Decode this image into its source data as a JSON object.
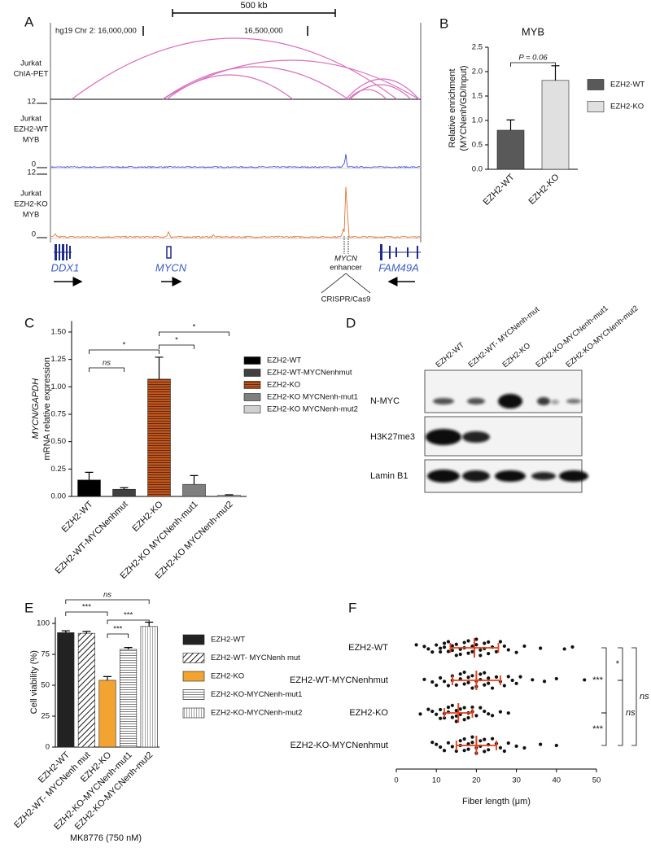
{
  "panel_a": {
    "label": "A",
    "scale_bar": "500 kb",
    "coord_start": "hg19 Chr 2: 16,000,000",
    "coord_mid": "16,500,000",
    "tracks": [
      {
        "name": [
          "Jurkat",
          "ChIA-PET"
        ]
      },
      {
        "name": [
          "Jurkat",
          "EZH2-WT",
          "MYB"
        ],
        "max": 12,
        "min": 0
      },
      {
        "name": [
          "Jurkat",
          "EZH2-KO",
          "MYB"
        ],
        "max": 12,
        "min": 0
      }
    ],
    "genes": [
      "DDX1",
      "MYCN",
      "FAM49A"
    ],
    "enhancer": [
      "MYCN",
      "enhancer"
    ],
    "crispr": "CRISPR/Cas9"
  },
  "panel_d": {
    "label": "D",
    "lanes": [
      "EZH2-WT",
      "EZH2-WT- MYCNenh-mut",
      "EZH2-KO",
      "EZH2-KO-MYCNenh-mut1",
      "EZH2-KO-MYCNenh-mut2"
    ],
    "rows": [
      "N-MYC",
      "H3K27me3",
      "Lamin B1"
    ]
  },
  "chart_data": [
    {
      "type": "bar",
      "panel": "B",
      "title": "MYB",
      "ylabel": [
        "Relative enrichment",
        "(MYCNenh/GD/Input)"
      ],
      "categories": [
        "EZH2-WT",
        "EZH2-KO"
      ],
      "values": [
        0.8,
        1.82
      ],
      "errors": [
        0.21,
        0.3
      ],
      "colors": [
        "#595959",
        "#e0e0e0"
      ],
      "hatch": [
        "none",
        "none"
      ],
      "ylim": [
        0,
        2.5
      ],
      "yticks": [
        {
          "value": 0,
          "label": "0.0"
        },
        {
          "value": 0.5,
          "label": "0.5"
        },
        {
          "value": 1,
          "label": "1.0"
        },
        {
          "value": 1.5,
          "label": "1.5"
        },
        {
          "value": 2,
          "label": "2.0"
        },
        {
          "value": 2.5,
          "label": "2.5"
        }
      ],
      "comparisons": [
        {
          "pair": [
            "EZH2-WT",
            "EZH2-KO"
          ],
          "label": "P = 0.06"
        }
      ]
    },
    {
      "type": "bar",
      "panel": "C",
      "ylabel": [
        "MYCN/GAPDH",
        "mRNA relative expression"
      ],
      "categories": [
        "EZH2-WT",
        "EZH2-WT-MYCNenhmut",
        "EZH2-KO",
        "EZH2-KO MYCNenh-mut1",
        "EZH2-KO MYCNenh-mut2"
      ],
      "values": [
        0.15,
        0.065,
        1.07,
        0.11,
        0.01
      ],
      "errors": [
        0.07,
        0.015,
        0.2,
        0.08,
        0.005
      ],
      "colors": [
        "#000000",
        "#404040",
        "#c0561e",
        "#7f7f7f",
        "#d0d0d0"
      ],
      "hatch": [
        "none",
        "none",
        "horizontal",
        "none",
        "none"
      ],
      "ylim": [
        0,
        1.6
      ],
      "yticks": [
        {
          "value": 0,
          "label": "0.00"
        },
        {
          "value": 0.25,
          "label": "0.25"
        },
        {
          "value": 0.5,
          "label": "0.50"
        },
        {
          "value": 0.75,
          "label": "0.75"
        },
        {
          "value": 1,
          "label": "1.00"
        },
        {
          "value": 1.25,
          "label": "1.25"
        },
        {
          "value": 1.5,
          "label": "1.50"
        }
      ],
      "comparisons": [
        {
          "pair": [
            "EZH2-WT",
            "EZH2-WT-MYCNenhmut"
          ],
          "label": "ns"
        },
        {
          "pair": [
            "EZH2-WT",
            "EZH2-KO"
          ],
          "label": "*"
        },
        {
          "pair": [
            "EZH2-KO",
            "EZH2-KO MYCNenh-mut1"
          ],
          "label": "*"
        },
        {
          "pair": [
            "EZH2-KO",
            "EZH2-KO MYCNenh-mut2"
          ],
          "label": "*"
        }
      ]
    },
    {
      "type": "bar",
      "panel": "E",
      "ylabel": "Cell viability (%)",
      "xlabel": "MK8776 (750 nM)",
      "categories": [
        "EZH2-WT",
        "EZH2-WT- MYCNenh mut",
        "EZH2-KO",
        "EZH2-KO-MYCNenh-mut1",
        "EZH2-KO-MYCNenh-mut2"
      ],
      "values": [
        92.5,
        92,
        54,
        79,
        97.5
      ],
      "errors": [
        1.5,
        1.5,
        3,
        1.5,
        3.5
      ],
      "colors": [
        "#222222",
        "#ffffff",
        "#f2a330",
        "#ffffff",
        "#ffffff"
      ],
      "hatch": [
        "none",
        "diagonal",
        "none",
        "horizontal",
        "vertical"
      ],
      "ylim": [
        0,
        105
      ],
      "yticks": [
        0,
        25,
        50,
        75,
        100
      ],
      "comparisons": [
        {
          "pair": [
            "EZH2-WT",
            "EZH2-KO-MYCNenh-mut2"
          ],
          "label": "ns"
        },
        {
          "pair": [
            "EZH2-WT",
            "EZH2-KO"
          ],
          "label": "***"
        },
        {
          "pair": [
            "EZH2-KO",
            "EZH2-KO-MYCNenh-mut2"
          ],
          "label": "***"
        },
        {
          "pair": [
            "EZH2-KO",
            "EZH2-KO-MYCNenh-mut1"
          ],
          "label": "***"
        }
      ]
    },
    {
      "type": "dotplot",
      "panel": "F",
      "xlabel": "Fiber length (μm)",
      "series": [
        {
          "name": "EZH2-WT",
          "values": [
            5,
            7,
            8,
            9,
            10,
            11,
            11,
            12,
            12,
            13,
            13,
            14,
            14,
            15,
            15,
            16,
            16,
            17,
            17,
            18,
            18,
            19,
            19,
            20,
            20,
            21,
            21,
            22,
            22,
            23,
            23,
            24,
            25,
            26,
            27,
            28,
            30,
            32,
            36,
            42,
            44
          ]
        },
        {
          "name": "EZH2-WT-MYCNenhmut",
          "values": [
            7,
            9,
            10,
            11,
            12,
            13,
            14,
            14,
            15,
            16,
            16,
            17,
            17,
            18,
            18,
            19,
            19,
            20,
            20,
            21,
            21,
            22,
            22,
            23,
            23,
            24,
            25,
            26,
            27,
            28,
            29,
            30,
            31,
            34,
            37,
            40,
            47
          ]
        },
        {
          "name": "EZH2-KO",
          "values": [
            6,
            8,
            9,
            10,
            11,
            11,
            12,
            12,
            13,
            13,
            14,
            14,
            15,
            15,
            15,
            16,
            16,
            17,
            17,
            18,
            18,
            19,
            19,
            20,
            21,
            22,
            23,
            24,
            26,
            28
          ]
        },
        {
          "name": "EZH2-KO-MYCNenhmut",
          "values": [
            9,
            10,
            11,
            12,
            13,
            14,
            15,
            16,
            16,
            17,
            17,
            18,
            18,
            19,
            19,
            20,
            20,
            21,
            21,
            22,
            22,
            23,
            23,
            24,
            25,
            26,
            27,
            28,
            30,
            32,
            36,
            40
          ]
        }
      ],
      "means": [
        19.5,
        20,
        15.5,
        20
      ],
      "sds": [
        6,
        6,
        3.5,
        5
      ],
      "point_color": "#111111",
      "summary_color": "#e8401c",
      "xlim": [
        0,
        50
      ],
      "xticks": [
        0,
        10,
        20,
        30,
        40,
        50
      ],
      "comparisons": [
        {
          "pair": [
            "EZH2-WT",
            "EZH2-KO"
          ],
          "label": "***"
        },
        {
          "pair": [
            "EZH2-KO",
            "EZH2-KO-MYCNenhmut"
          ],
          "label": "***"
        },
        {
          "pair": [
            "EZH2-WT",
            "EZH2-WT-MYCNenhmut"
          ],
          "label": "*"
        },
        {
          "pair": [
            "EZH2-WT-MYCNenhmut",
            "EZH2-KO-MYCNenhmut"
          ],
          "label": "ns"
        },
        {
          "pair": [
            "EZH2-WT",
            "EZH2-KO-MYCNenhmut"
          ],
          "label": "ns"
        }
      ]
    }
  ]
}
